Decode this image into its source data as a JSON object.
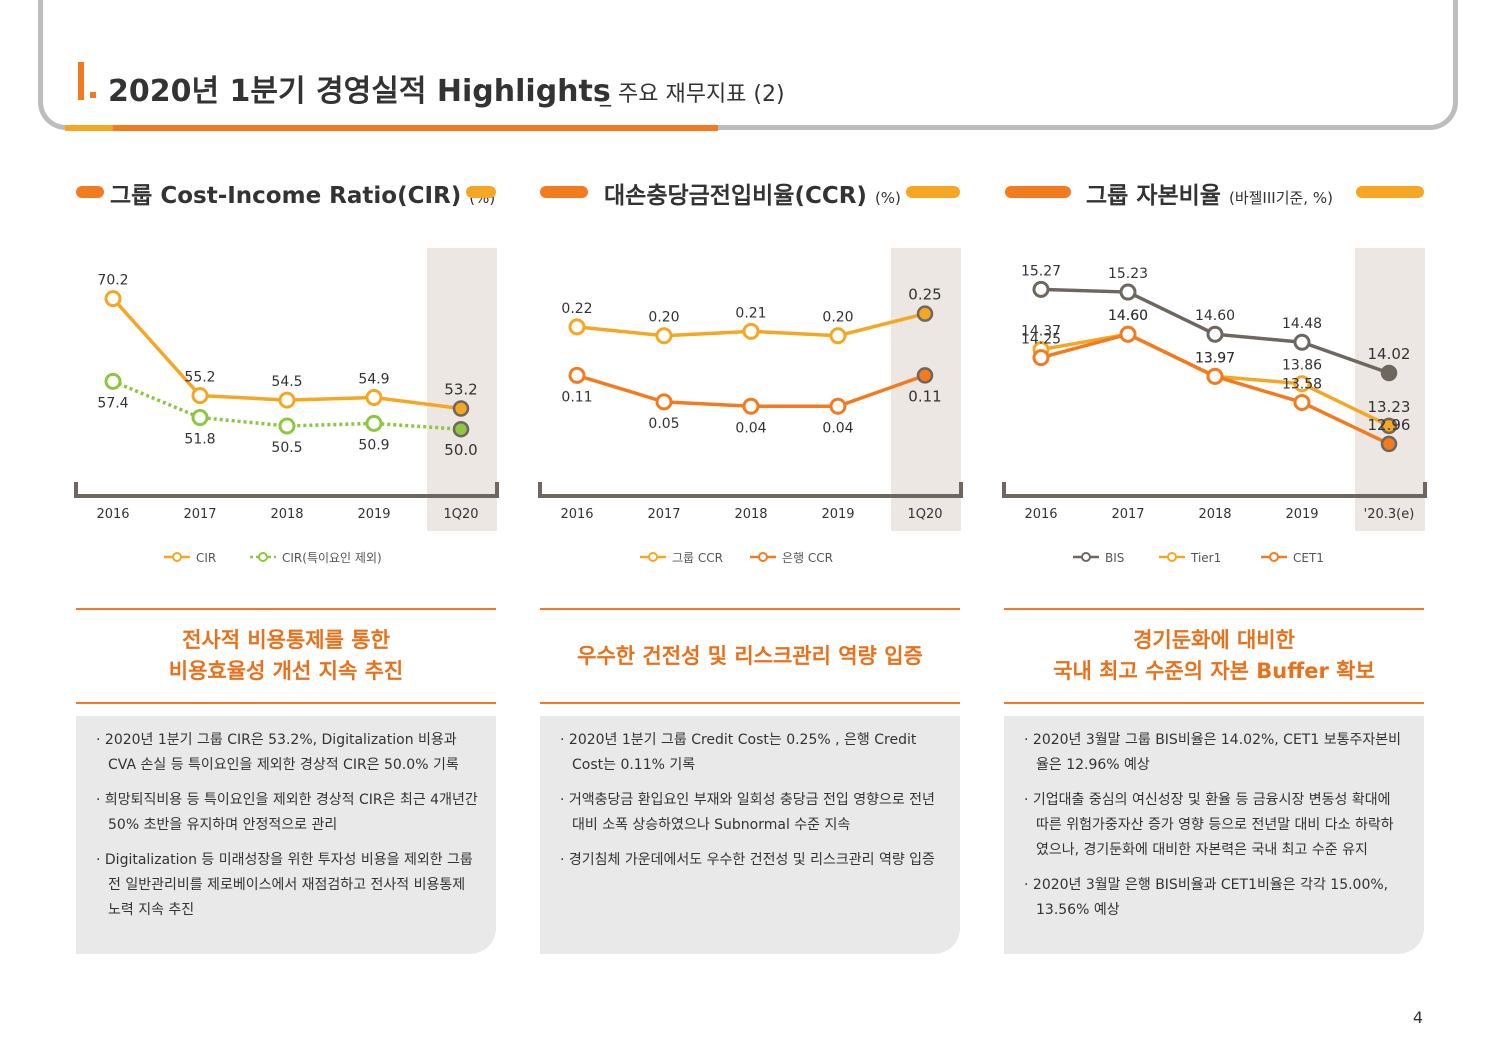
{
  "header": {
    "roman": "I.",
    "title": "2020년 1분기 경영실적 Highlights",
    "subtitle": "_ 주요 재무지표 (2)"
  },
  "colors": {
    "orange": "#f47a20",
    "yellow": "#f5a623",
    "green": "#8dc63f",
    "gray": "#6d6760",
    "shade": "#ece7e2"
  },
  "panels": [
    {
      "title": "그룹 Cost-Income Ratio(CIR)",
      "unit": "(%)",
      "summary": "전사적 비용통제를 통한\n비용효율성 개선 지속 추진",
      "bullets": [
        "2020년 1분기 그룹 CIR은 53.2%, Digitalization 비용과 CVA 손실 등 특이요인을 제외한 경상적 CIR은 50.0% 기록",
        "희망퇴직비용 등 특이요인을 제외한 경상적 CIR은 최근 4개년간 50% 초반을 유지하며 안정적으로 관리",
        "Digitalization 등 미래성장을 위한 투자성 비용을 제외한 그룹 전 일반관리비를 제로베이스에서 재점검하고 전사적 비용통제 노력 지속 추진"
      ]
    },
    {
      "title": "대손충당금전입비율(CCR)",
      "unit": "(%)",
      "summary": "우수한 건전성 및 리스크관리 역량 입증",
      "bullets": [
        "2020년 1분기 그룹 Credit Cost는 0.25% , 은행 Credit Cost는 0.11% 기록",
        "거액충당금 환입요인 부재와 일회성 충당금 전입 영향으로 전년대비 소폭 상승하였으나 Subnormal 수준 지속",
        "경기침체 가운데에서도 우수한 건전성 및 리스크관리 역량 입증"
      ]
    },
    {
      "title": "그룹 자본비율",
      "unit": "(바젤III기준, %)",
      "summary": "경기둔화에 대비한\n국내 최고 수준의 자본 Buffer 확보",
      "bullets": [
        "2020년 3월말 그룹 BIS비율은 14.02%, CET1 보통주자본비율은 12.96% 예상",
        "기업대출 중심의 여신성장 및 환율 등 금융시장 변동성 확대에 따른 위험가중자산 증가 영향 등으로 전년말 대비 다소 하락하였으나, 경기둔화에 대비한 자본력은 국내 최고 수준 유지",
        "2020년 3월말 은행 BIS비율과 CET1비율은 각각 15.00%, 13.56% 예상"
      ]
    }
  ],
  "chart_data": [
    {
      "type": "line",
      "categories": [
        "2016",
        "2017",
        "2018",
        "2019",
        "1Q20"
      ],
      "ylim": [
        44,
        74
      ],
      "series": [
        {
          "name": "CIR",
          "values": [
            70.2,
            55.2,
            54.5,
            54.9,
            53.2
          ],
          "labels": [
            "70.2",
            "55.2",
            "54.5",
            "54.9",
            "53.2"
          ],
          "color": "#f5a623",
          "dashed": false,
          "labelpos": "above"
        },
        {
          "name": "CIR(특이요인 제외)",
          "values": [
            57.4,
            51.8,
            50.5,
            50.9,
            50.0
          ],
          "labels": [
            "57.4",
            "51.8",
            "50.5",
            "50.9",
            "50.0"
          ],
          "color": "#8dc63f",
          "dashed": true,
          "labelpos": "below"
        }
      ]
    },
    {
      "type": "line",
      "categories": [
        "2016",
        "2017",
        "2018",
        "2019",
        "1Q20"
      ],
      "ylim": [
        -0.1,
        0.34
      ],
      "series": [
        {
          "name": "그룹 CCR",
          "values": [
            0.22,
            0.2,
            0.21,
            0.2,
            0.25
          ],
          "labels": [
            "0.22",
            "0.20",
            "0.21",
            "0.20",
            "0.25"
          ],
          "color": "#f5a623",
          "dashed": false,
          "labelpos": "above"
        },
        {
          "name": "은행 CCR",
          "values": [
            0.11,
            0.05,
            0.04,
            0.04,
            0.11
          ],
          "labels": [
            "0.11",
            "0.05",
            "0.04",
            "0.04",
            "0.11"
          ],
          "color": "#f47a20",
          "dashed": false,
          "labelpos": "below"
        }
      ]
    },
    {
      "type": "line",
      "categories": [
        "2016",
        "2017",
        "2018",
        "2019",
        "'20.3(e)"
      ],
      "ylim": [
        12.6,
        15.5
      ],
      "series": [
        {
          "name": "BIS",
          "values": [
            15.27,
            15.23,
            14.6,
            14.48,
            14.02
          ],
          "labels": [
            "15.27",
            "15.23",
            "14.60",
            "14.48",
            "14.02"
          ],
          "color": "#6d6760",
          "dashed": false,
          "labelpos": "above"
        },
        {
          "name": "Tier1",
          "values": [
            14.37,
            14.6,
            13.97,
            13.86,
            13.23
          ],
          "labels": [
            "14.37",
            "14.60",
            "13.97",
            "13.86",
            "13.23"
          ],
          "color": "#f5a623",
          "dashed": false,
          "labelpos": "above"
        },
        {
          "name": "CET1",
          "values": [
            14.25,
            14.6,
            13.97,
            13.58,
            12.96
          ],
          "labels": [
            "14.25",
            "14.60",
            "13.97",
            "13.58",
            "12.96"
          ],
          "color": "#f47a20",
          "dashed": false,
          "labelpos": "above"
        }
      ]
    }
  ],
  "page_number": "4"
}
